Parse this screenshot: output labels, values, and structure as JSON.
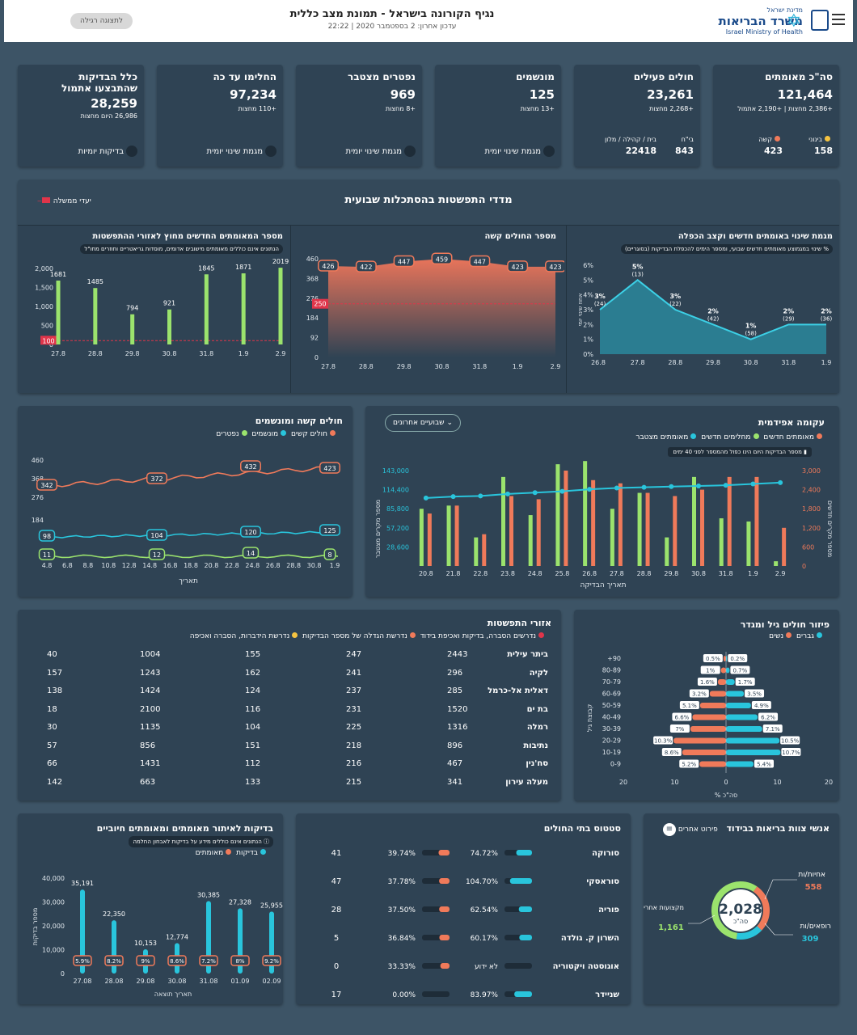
{
  "header": {
    "ministry_small": "מדינת ישראל",
    "ministry": "משרד הבריאות",
    "ministry_en": "Israel Ministry of Health",
    "title": "נגיף הקורונה בישראל - תמונת מצב כללית",
    "updated": "עדכון אחרון: 2 בספטמבר 2020 | 22:22",
    "normal_view": "לתצוגה רגילה"
  },
  "stats": {
    "confirmed": {
      "title": "סה\"כ מאומתים",
      "value": "121,464",
      "sub": "+2,386 מחצות | +2,190 אתמול",
      "mid_label": "בינוני",
      "mid_value": "158",
      "sev_label": "קשה",
      "sev_value": "423"
    },
    "active": {
      "title": "חולים פעילים",
      "value": "23,261",
      "sub": "+2,268 מחצות",
      "hosp_label": "בי\"ח",
      "hosp_value": "843",
      "home_label": "בית / קהילה / מלון",
      "home_value": "22418"
    },
    "vent": {
      "title": "מונשמים",
      "value": "125",
      "sub": "+13 מחצות",
      "link": "מגמת שינוי יומית"
    },
    "deaths": {
      "title": "נפטרים מצטבר",
      "value": "969",
      "sub": "+8 מחצות",
      "link": "מגמת שינוי יומית"
    },
    "recovered": {
      "title": "החלימו עד כה",
      "value": "97,234",
      "sub": "+110 מחצות",
      "link": "מגמת שינוי יומית"
    },
    "tests": {
      "title1": "כלל הבדיקות",
      "title2": "שהתבצעו אתמול",
      "value": "28,259",
      "sub": "26,986 היום מחצות",
      "link": "בדיקות יומיות"
    }
  },
  "weekly": {
    "title": "מדדי התפשטות בהסתכלות שבועית",
    "legend": "יעדי ממשלה",
    "c1": {
      "title": "מגמת שינוי באומתים חדשים וקצב הכפלה",
      "note": "% שינוי במגמוצע מאומתים חדשים שבועי, ומספר הימים להכפלת הבדיקות (בסוגריים)",
      "ylabel": "אחוז שינוי יומי",
      "x": [
        "26.8",
        "27.8",
        "28.8",
        "29.8",
        "30.8",
        "31.8",
        "1.9"
      ],
      "y": [
        3,
        5,
        3,
        2,
        1,
        2,
        2
      ],
      "dbl": [
        "(24)",
        "(13)",
        "(22)",
        "(42)",
        "(58)",
        "(29)",
        "(36)"
      ],
      "ticks": [
        "0%",
        "1%",
        "2%",
        "3%",
        "4%",
        "5%",
        "6%"
      ]
    },
    "c2": {
      "title": "מספר החולים קשה",
      "x": [
        "27.8",
        "28.8",
        "29.8",
        "30.8",
        "31.8",
        "1.9",
        "2.9"
      ],
      "y": [
        426,
        422,
        447,
        459,
        447,
        423,
        423
      ],
      "ticks": [
        "0",
        "92",
        "184",
        "276",
        "368",
        "460"
      ],
      "target": "250"
    },
    "c3": {
      "title": "מספר המאומתים החדשים מחוץ לאזורי ההתפשטות",
      "note": "הנתונים אינם כוללים מאומתים מישובים אדומים, מוסדות גריאטריים וחוזרים מחו\"ל",
      "x": [
        "27.8",
        "28.8",
        "29.8",
        "30.8",
        "31.8",
        "1.9",
        "2.9"
      ],
      "y": [
        1681,
        1485,
        794,
        921,
        1845,
        1871,
        2019
      ],
      "ticks": [
        "0",
        "500",
        "1,000",
        "1,500",
        "2,000"
      ],
      "target": "100"
    }
  },
  "epi": {
    "title": "עקומה אפידמית",
    "dropdown": "שבועיים אחרונים",
    "leg": [
      "מאומתים חדשים",
      "מחלימים חדשים",
      "מאומתים מצטבר"
    ],
    "note": "מספר הבדיקות היום הינו כפול מהמספר לפני 40 ימים",
    "xlabel": "תאריך הבדיקה",
    "yl": "מספר מקרים מצטבר",
    "yr": "מספר מקרים חדשים",
    "x": [
      "20.8",
      "21.8",
      "22.8",
      "23.8",
      "24.8",
      "25.8",
      "26.8",
      "27.8",
      "28.8",
      "29.8",
      "30.8",
      "31.8",
      "1.9",
      "2.9"
    ],
    "newc": [
      1650,
      1900,
      1000,
      2200,
      2100,
      3000,
      2700,
      2600,
      2300,
      2200,
      2400,
      2800,
      2800,
      1200
    ],
    "recov": [
      1800,
      1900,
      900,
      2800,
      1600,
      3200,
      3300,
      1800,
      2300,
      900,
      2800,
      1500,
      1400,
      150
    ],
    "cum": [
      102000,
      104000,
      105000,
      108000,
      110000,
      112000,
      115000,
      117000,
      118000,
      119000,
      120000,
      121000,
      123000,
      125000
    ],
    "lt": [
      "28,600",
      "57,200",
      "85,800",
      "114,400",
      "143,000"
    ],
    "rt": [
      "600",
      "1,200",
      "1,800",
      "2,400",
      "3,000"
    ]
  },
  "sev": {
    "title": "חולים קשה ומונשמים",
    "leg": [
      "חולים קשים",
      "מונשמים",
      "נפטרים"
    ],
    "xlabel": "תאריך",
    "x": [
      "4.8",
      "6.8",
      "8.8",
      "10.8",
      "12.8",
      "14.8",
      "16.8",
      "18.8",
      "20.8",
      "22.8",
      "24.8",
      "26.8",
      "28.8",
      "30.8",
      "1.9"
    ],
    "ticks": [
      "184",
      "276",
      "368",
      "460"
    ],
    "sevl": [
      "342",
      "372",
      "432",
      "423"
    ],
    "ventl": [
      "98",
      "104",
      "120",
      "125"
    ],
    "deadl": [
      "11",
      "12",
      "14",
      "8"
    ]
  },
  "areas": {
    "title": "אזורי התפשטות",
    "leg": [
      "נדרשים הסברה, בדיקות ואכיפת בידוד",
      "נדרשת הגדלה של מספר הבדיקות",
      "נדרשת הידברות, הסברה ואכיפה"
    ],
    "rows": [
      [
        "ביתר עילית",
        "2443",
        "247",
        "155",
        "1004",
        "40"
      ],
      [
        "לקיה",
        "296",
        "241",
        "162",
        "1243",
        "157"
      ],
      [
        "דאלית אל-כרמל",
        "285",
        "237",
        "124",
        "1424",
        "138"
      ],
      [
        "בת ים",
        "1520",
        "231",
        "116",
        "2100",
        "18"
      ],
      [
        "רמלה",
        "1316",
        "225",
        "104",
        "1135",
        "30"
      ],
      [
        "נתיבות",
        "896",
        "218",
        "151",
        "856",
        "57"
      ],
      [
        "סח'נין",
        "467",
        "216",
        "112",
        "1431",
        "66"
      ],
      [
        "מעלה עירון",
        "341",
        "215",
        "133",
        "663",
        "142"
      ]
    ]
  },
  "age": {
    "title": "פיזור חולים גיל ומגדר",
    "leg": [
      "גברים",
      "נשים"
    ],
    "ylabel": "קבוצת גיל",
    "xlabel": "% סה\"כ",
    "groups": [
      "+90",
      "80-89",
      "70-79",
      "60-69",
      "50-59",
      "40-49",
      "30-39",
      "20-29",
      "10-19",
      "0-9"
    ],
    "men": [
      0.2,
      0.7,
      1.7,
      3.5,
      4.9,
      6.2,
      7.1,
      10.5,
      10.7,
      5.4
    ],
    "women": [
      0.5,
      1,
      1.6,
      3.2,
      5.1,
      6.6,
      7,
      10.3,
      8.6,
      5.2
    ],
    "ticks": [
      "20",
      "10",
      "0",
      "10",
      "20"
    ]
  },
  "tests": {
    "title": "בדיקות לאיתור מאומתים ומאומתים חיוביים",
    "note": "הנתונים אינם כוללים מידע על בדיקות לאבחון החלמה",
    "leg": [
      "בדיקות",
      "מאומתים"
    ],
    "ylabel": "מספר בדיקות",
    "xlabel": "תאריך תוצאה",
    "x": [
      "27.08",
      "28.08",
      "29.08",
      "30.08",
      "31.08",
      "01.09",
      "02.09"
    ],
    "y": [
      35191,
      22350,
      10153,
      12774,
      30385,
      27328,
      25955
    ],
    "vlabels": [
      "35,191",
      "22,350",
      "10,153",
      "12,774",
      "30,385",
      "27,328",
      "25,955"
    ],
    "pct": [
      "5.9%",
      "8.2%",
      "9%",
      "8.6%",
      "7.2%",
      "8%",
      "9.2%"
    ],
    "ticks": [
      "0",
      "10,000",
      "20,000",
      "30,000",
      "40,000"
    ]
  },
  "hosp": {
    "title": "סטטוס בתי החולים",
    "rows": [
      [
        "סורוקה",
        "74.72%",
        "39.74%",
        "41"
      ],
      [
        "סוראסקי",
        "104.70%",
        "37.78%",
        "47"
      ],
      [
        "פוריה",
        "62.54%",
        "37.50%",
        "28"
      ],
      [
        "השרון ק. גולדה",
        "60.17%",
        "36.84%",
        "5"
      ],
      [
        "אוגוסטה ויקטוריה",
        "לא ידוע",
        "33.33%",
        "0"
      ],
      [
        "שניידר",
        "83.97%",
        "0.00%",
        "17"
      ]
    ],
    "occ": [
      74.72,
      104.7,
      62.54,
      60.17,
      0,
      83.97
    ],
    "vent": [
      39.74,
      37.78,
      37.5,
      36.84,
      33.33,
      0
    ]
  },
  "staff": {
    "title": "אנשי צוות בריאות בבידוד",
    "detail": "פירוט אחרים",
    "total": "2,028",
    "total_label": "סה\"כ",
    "nurses": "אחיות/ות",
    "nurses_v": "558",
    "doctors": "רופאים/ות",
    "doctors_v": "309",
    "other": "מקצועות אחרים",
    "other_v": "1,161"
  }
}
